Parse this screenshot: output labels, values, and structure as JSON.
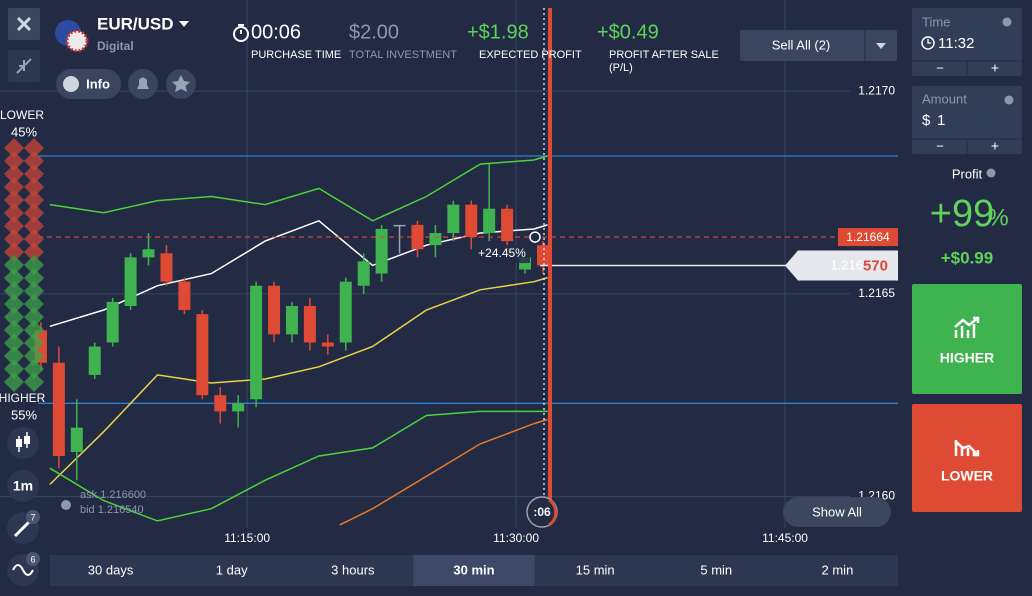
{
  "header": {
    "asset": "EUR/USD",
    "asset_type": "Digital",
    "info_button": "Info",
    "purchase_time": {
      "value": "00:06",
      "label": "PURCHASE TIME"
    },
    "total_investment": {
      "value": "$2.00",
      "label": "TOTAL INVESTMENT"
    },
    "expected_profit": {
      "value": "+$1.98",
      "label": "EXPECTED PROFIT"
    },
    "profit_after_sale": {
      "value": "+$0.49",
      "label": [
        "PROFIT AFTER SALE",
        "(P/L)"
      ]
    },
    "sell_all": "Sell All (2)"
  },
  "sentiment": {
    "lower_label": "LOWER",
    "lower_percent": "45%",
    "higher_label": "HIGHER",
    "higher_percent": "55%"
  },
  "toolbar": {
    "timeframe": "1m",
    "drawings_badge": "7",
    "indicators_badge": "6"
  },
  "right_panel": {
    "time_label": "Time",
    "time_value": "11:32",
    "amount_label": "Amount",
    "currency": "$",
    "amount_value": "1",
    "minus": "−",
    "plus": "+",
    "profit_label": "Profit",
    "profit_percent": "+99",
    "percent_sign": "%",
    "profit_amount": "+$0.99",
    "higher_button": "HIGHER",
    "lower_button": "LOWER"
  },
  "periods": {
    "options": [
      "30 days",
      "1 day",
      "3 hours",
      "30 min",
      "15 min",
      "5 min",
      "2 min"
    ],
    "selected": 3
  },
  "chart_data": {
    "type": "candlestick",
    "xlim": [
      "11:01:13",
      "11:51:18"
    ],
    "xticks": [
      "11:15:00",
      "11:30:00",
      "11:45:00"
    ],
    "ylim": [
      1.21592,
      1.2172
    ],
    "yticks": [
      {
        "value": 1.217,
        "label": "1.2170"
      },
      1.2165,
      {
        "value": 1.216,
        "label": "1.2160"
      }
    ],
    "grid": true,
    "up_color": "#3fb34f",
    "down_color": "#df4a34",
    "flat_color": "#9aa3b5",
    "candles": [
      {
        "t": "11:03:30",
        "open": 1.21641,
        "high": 1.21643,
        "low": 1.21631,
        "close": 1.21633
      },
      {
        "t": "11:04:30",
        "open": 1.21633,
        "high": 1.21637,
        "low": 1.21607,
        "close": 1.2161
      },
      {
        "t": "11:05:30",
        "open": 1.21611,
        "high": 1.21624,
        "low": 1.21604,
        "close": 1.21617
      },
      {
        "t": "11:06:30",
        "open": 1.2163,
        "high": 1.21638,
        "low": 1.21629,
        "close": 1.21637
      },
      {
        "t": "11:07:30",
        "open": 1.21638,
        "high": 1.21649,
        "low": 1.21637,
        "close": 1.21648
      },
      {
        "t": "11:08:30",
        "open": 1.21647,
        "high": 1.2166,
        "low": 1.21646,
        "close": 1.21659
      },
      {
        "t": "11:09:30",
        "open": 1.21659,
        "high": 1.21665,
        "low": 1.21657,
        "close": 1.21661
      },
      {
        "t": "11:10:30",
        "open": 1.2166,
        "high": 1.21662,
        "low": 1.21652,
        "close": 1.21653
      },
      {
        "t": "11:11:30",
        "open": 1.21653,
        "high": 1.21654,
        "low": 1.21645,
        "close": 1.21646
      },
      {
        "t": "11:12:30",
        "open": 1.21645,
        "high": 1.21646,
        "low": 1.21624,
        "close": 1.21625
      },
      {
        "t": "11:13:30",
        "open": 1.21625,
        "high": 1.21627,
        "low": 1.21618,
        "close": 1.21621
      },
      {
        "t": "11:14:30",
        "open": 1.21621,
        "high": 1.21625,
        "low": 1.21617,
        "close": 1.21623
      },
      {
        "t": "11:15:30",
        "open": 1.21624,
        "high": 1.21653,
        "low": 1.21622,
        "close": 1.21652
      },
      {
        "t": "11:16:30",
        "open": 1.21652,
        "high": 1.21653,
        "low": 1.21638,
        "close": 1.2164
      },
      {
        "t": "11:17:30",
        "open": 1.2164,
        "high": 1.21648,
        "low": 1.21638,
        "close": 1.21647
      },
      {
        "t": "11:18:30",
        "open": 1.21647,
        "high": 1.21649,
        "low": 1.21636,
        "close": 1.21638
      },
      {
        "t": "11:19:30",
        "open": 1.21638,
        "high": 1.2164,
        "low": 1.21635,
        "close": 1.21637
      },
      {
        "t": "11:20:30",
        "open": 1.21638,
        "high": 1.21654,
        "low": 1.21636,
        "close": 1.21653
      },
      {
        "t": "11:21:30",
        "open": 1.21652,
        "high": 1.2166,
        "low": 1.2165,
        "close": 1.21658
      },
      {
        "t": "11:22:30",
        "open": 1.21655,
        "high": 1.21667,
        "low": 1.21653,
        "close": 1.21666
      },
      {
        "t": "11:23:30",
        "open": 1.21667,
        "high": 1.21667,
        "low": 1.2166,
        "close": 1.21667
      },
      {
        "t": "11:24:30",
        "open": 1.21667,
        "high": 1.21668,
        "low": 1.21659,
        "close": 1.21661
      },
      {
        "t": "11:25:30",
        "open": 1.21662,
        "high": 1.21667,
        "low": 1.21659,
        "close": 1.21665
      },
      {
        "t": "11:26:30",
        "open": 1.21665,
        "high": 1.21673,
        "low": 1.21663,
        "close": 1.21672
      },
      {
        "t": "11:27:30",
        "open": 1.21672,
        "high": 1.21673,
        "low": 1.21661,
        "close": 1.21664
      },
      {
        "t": "11:28:30",
        "open": 1.21665,
        "high": 1.21682,
        "low": 1.21663,
        "close": 1.21671
      },
      {
        "t": "11:29:30",
        "open": 1.21671,
        "high": 1.21672,
        "low": 1.2166,
        "close": 1.21663
      },
      {
        "t": "11:30:30",
        "open": 1.21656,
        "high": 1.21661,
        "low": 1.21655,
        "close": 1.21659
      },
      {
        "t": "11:31:30",
        "open": 1.21662,
        "high": 1.21663,
        "low": 1.21655,
        "close": 1.21657
      }
    ],
    "series": [
      {
        "color": "#4cd23c",
        "x": [
          "11:04:00",
          "11:07:00",
          "11:10:00",
          "11:13:00",
          "11:16:00",
          "11:19:00",
          "11:22:00",
          "11:25:00",
          "11:28:00",
          "11:31:00",
          "11:31:45"
        ],
        "values": [
          1.21672,
          1.2167,
          1.21673,
          1.21674,
          1.21672,
          1.21676,
          1.21668,
          1.21674,
          1.21682,
          1.21683,
          1.21684
        ]
      },
      {
        "color": "#ffffff",
        "x": [
          "11:04:00",
          "11:07:00",
          "11:10:00",
          "11:13:00",
          "11:16:00",
          "11:19:00",
          "11:22:00",
          "11:25:00",
          "11:28:00",
          "11:31:00",
          "11:31:45"
        ],
        "values": [
          1.21642,
          1.21646,
          1.21652,
          1.21655,
          1.21663,
          1.21668,
          1.21657,
          1.21662,
          1.21665,
          1.21666,
          1.21667
        ]
      },
      {
        "color": "#e8d44a",
        "x": [
          "11:04:00",
          "11:07:00",
          "11:10:00",
          "11:13:00",
          "11:16:00",
          "11:19:00",
          "11:22:00",
          "11:25:00",
          "11:28:00",
          "11:31:00",
          "11:31:45"
        ],
        "values": [
          1.21603,
          1.21616,
          1.2163,
          1.21628,
          1.21629,
          1.21632,
          1.21637,
          1.21646,
          1.21651,
          1.21653,
          1.21654
        ]
      },
      {
        "color": "#4cd23c",
        "x": [
          "11:04:00",
          "11:07:00",
          "11:10:00",
          "11:13:00",
          "11:16:00",
          "11:19:00",
          "11:22:00",
          "11:25:00",
          "11:28:00",
          "11:31:00",
          "11:31:45"
        ],
        "values": [
          1.21607,
          1.21599,
          1.21594,
          1.21597,
          1.21604,
          1.2161,
          1.21612,
          1.2162,
          1.21621,
          1.21621,
          1.21621
        ]
      },
      {
        "color": "#e8782a",
        "x": [
          "11:20:10",
          "11:22:00",
          "11:25:00",
          "11:28:00",
          "11:31:00",
          "11:31:45"
        ],
        "values": [
          1.21593,
          1.21597,
          1.21605,
          1.21613,
          1.21618,
          1.21619
        ]
      }
    ],
    "levels": [
      1.21684,
      1.21623
    ],
    "level_color": "#2f7fd0",
    "strike_price": 1.21664,
    "current_price": {
      "value": 1.21657,
      "label": [
        "1.216",
        "570"
      ]
    },
    "change_label": "+24.45%",
    "ask": "ask 1.216600",
    "bid": "bid 1.216540",
    "countdown": ":06",
    "show_all": "Show All"
  }
}
